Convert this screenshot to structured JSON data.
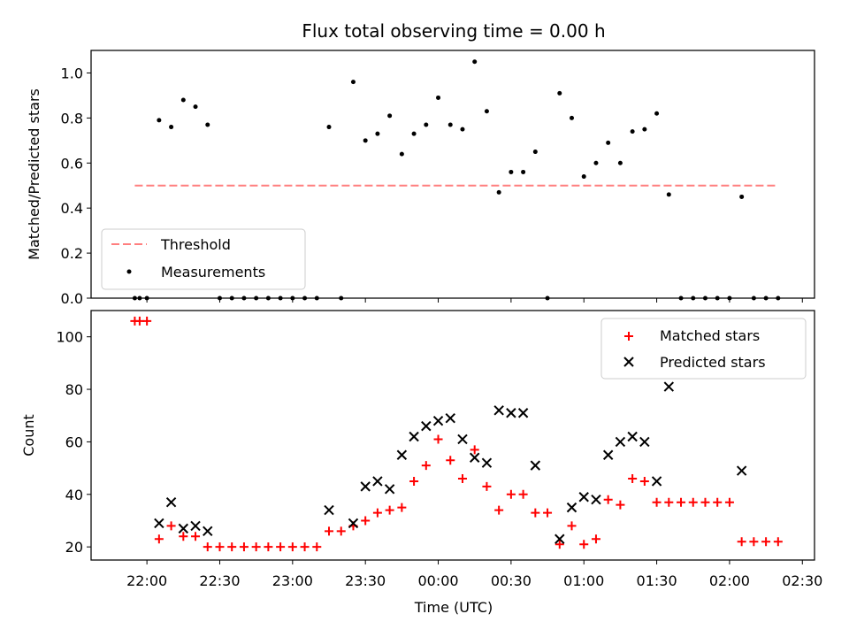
{
  "chart_data": [
    {
      "type": "scatter",
      "title": "Flux total observing time = 0.00 h",
      "xlabel": "",
      "ylabel": "Matched/Predicted stars",
      "ylim": [
        0,
        1.1
      ],
      "yticks": [
        "0.0",
        "0.2",
        "0.4",
        "0.6",
        "0.8",
        "1.0"
      ],
      "threshold": {
        "name": "Threshold",
        "y": 0.5,
        "x_range": [
          "21:55",
          "02:20"
        ],
        "color": "#ff7f7f"
      },
      "series": [
        {
          "name": "Measurements",
          "color": "#000000",
          "points": [
            [
              "21:55",
              0.0
            ],
            [
              "21:57",
              0.0
            ],
            [
              "22:00",
              0.0
            ],
            [
              "22:05",
              0.79
            ],
            [
              "22:10",
              0.76
            ],
            [
              "22:15",
              0.88
            ],
            [
              "22:20",
              0.85
            ],
            [
              "22:25",
              0.77
            ],
            [
              "22:30",
              0.0
            ],
            [
              "22:35",
              0.0
            ],
            [
              "22:40",
              0.0
            ],
            [
              "22:45",
              0.0
            ],
            [
              "22:50",
              0.0
            ],
            [
              "22:55",
              0.0
            ],
            [
              "23:00",
              0.0
            ],
            [
              "23:05",
              0.0
            ],
            [
              "23:10",
              0.0
            ],
            [
              "23:15",
              0.76
            ],
            [
              "23:20",
              0.0
            ],
            [
              "23:25",
              0.96
            ],
            [
              "23:30",
              0.7
            ],
            [
              "23:35",
              0.73
            ],
            [
              "23:40",
              0.81
            ],
            [
              "23:45",
              0.64
            ],
            [
              "23:50",
              0.73
            ],
            [
              "23:55",
              0.77
            ],
            [
              "00:00",
              0.89
            ],
            [
              "00:05",
              0.77
            ],
            [
              "00:10",
              0.75
            ],
            [
              "00:15",
              1.05
            ],
            [
              "00:20",
              0.83
            ],
            [
              "00:25",
              0.47
            ],
            [
              "00:30",
              0.56
            ],
            [
              "00:35",
              0.56
            ],
            [
              "00:40",
              0.65
            ],
            [
              "00:45",
              0.0
            ],
            [
              "00:50",
              0.91
            ],
            [
              "00:55",
              0.8
            ],
            [
              "01:00",
              0.54
            ],
            [
              "01:05",
              0.6
            ],
            [
              "01:10",
              0.69
            ],
            [
              "01:15",
              0.6
            ],
            [
              "01:20",
              0.74
            ],
            [
              "01:25",
              0.75
            ],
            [
              "01:30",
              0.82
            ],
            [
              "01:35",
              0.46
            ],
            [
              "01:40",
              0.0
            ],
            [
              "01:45",
              0.0
            ],
            [
              "01:50",
              0.0
            ],
            [
              "01:55",
              0.0
            ],
            [
              "02:00",
              0.0
            ],
            [
              "02:05",
              0.45
            ],
            [
              "02:10",
              0.0
            ],
            [
              "02:15",
              0.0
            ],
            [
              "02:20",
              0.0
            ]
          ]
        }
      ],
      "legend": "lower-left"
    },
    {
      "type": "scatter",
      "title": "",
      "xlabel": "Time (UTC)",
      "ylabel": "Count",
      "xlim": [
        "21:37",
        "02:35"
      ],
      "xticks": [
        "22:00",
        "22:30",
        "23:00",
        "23:30",
        "00:00",
        "00:30",
        "01:00",
        "01:30",
        "02:00",
        "02:30"
      ],
      "ylim": [
        15,
        110
      ],
      "yticks": [
        "20",
        "40",
        "60",
        "80",
        "100"
      ],
      "series": [
        {
          "name": "Matched stars",
          "marker": "+",
          "color": "#ff0000",
          "points": [
            [
              "21:55",
              106
            ],
            [
              "21:57",
              106
            ],
            [
              "22:00",
              106
            ],
            [
              "22:05",
              23
            ],
            [
              "22:10",
              28
            ],
            [
              "22:15",
              24
            ],
            [
              "22:20",
              24
            ],
            [
              "22:25",
              20
            ],
            [
              "22:30",
              20
            ],
            [
              "22:35",
              20
            ],
            [
              "22:40",
              20
            ],
            [
              "22:45",
              20
            ],
            [
              "22:50",
              20
            ],
            [
              "22:55",
              20
            ],
            [
              "23:00",
              20
            ],
            [
              "23:05",
              20
            ],
            [
              "23:10",
              20
            ],
            [
              "23:15",
              26
            ],
            [
              "23:20",
              26
            ],
            [
              "23:25",
              28
            ],
            [
              "23:30",
              30
            ],
            [
              "23:35",
              33
            ],
            [
              "23:40",
              34
            ],
            [
              "23:45",
              35
            ],
            [
              "23:50",
              45
            ],
            [
              "23:55",
              51
            ],
            [
              "00:00",
              61
            ],
            [
              "00:05",
              53
            ],
            [
              "00:10",
              46
            ],
            [
              "00:15",
              57
            ],
            [
              "00:20",
              43
            ],
            [
              "00:25",
              34
            ],
            [
              "00:30",
              40
            ],
            [
              "00:35",
              40
            ],
            [
              "00:40",
              33
            ],
            [
              "00:45",
              33
            ],
            [
              "00:50",
              21
            ],
            [
              "00:55",
              28
            ],
            [
              "01:00",
              21
            ],
            [
              "01:05",
              23
            ],
            [
              "01:10",
              38
            ],
            [
              "01:15",
              36
            ],
            [
              "01:20",
              46
            ],
            [
              "01:25",
              45
            ],
            [
              "01:30",
              37
            ],
            [
              "01:35",
              37
            ],
            [
              "01:40",
              37
            ],
            [
              "01:45",
              37
            ],
            [
              "01:50",
              37
            ],
            [
              "01:55",
              37
            ],
            [
              "02:00",
              37
            ],
            [
              "02:05",
              22
            ],
            [
              "02:10",
              22
            ],
            [
              "02:15",
              22
            ],
            [
              "02:20",
              22
            ]
          ]
        },
        {
          "name": "Predicted stars",
          "marker": "x",
          "color": "#000000",
          "points": [
            [
              "22:05",
              29
            ],
            [
              "22:10",
              37
            ],
            [
              "22:15",
              27
            ],
            [
              "22:20",
              28
            ],
            [
              "22:25",
              26
            ],
            [
              "23:15",
              34
            ],
            [
              "23:25",
              29
            ],
            [
              "23:30",
              43
            ],
            [
              "23:35",
              45
            ],
            [
              "23:40",
              42
            ],
            [
              "23:45",
              55
            ],
            [
              "23:50",
              62
            ],
            [
              "23:55",
              66
            ],
            [
              "00:00",
              68
            ],
            [
              "00:05",
              69
            ],
            [
              "00:10",
              61
            ],
            [
              "00:15",
              54
            ],
            [
              "00:20",
              52
            ],
            [
              "00:25",
              72
            ],
            [
              "00:30",
              71
            ],
            [
              "00:35",
              71
            ],
            [
              "00:40",
              51
            ],
            [
              "00:50",
              23
            ],
            [
              "00:55",
              35
            ],
            [
              "01:00",
              39
            ],
            [
              "01:05",
              38
            ],
            [
              "01:10",
              55
            ],
            [
              "01:15",
              60
            ],
            [
              "01:20",
              62
            ],
            [
              "01:25",
              60
            ],
            [
              "01:30",
              45
            ],
            [
              "01:35",
              81
            ],
            [
              "02:05",
              49
            ]
          ]
        }
      ],
      "legend": "top-right"
    }
  ]
}
